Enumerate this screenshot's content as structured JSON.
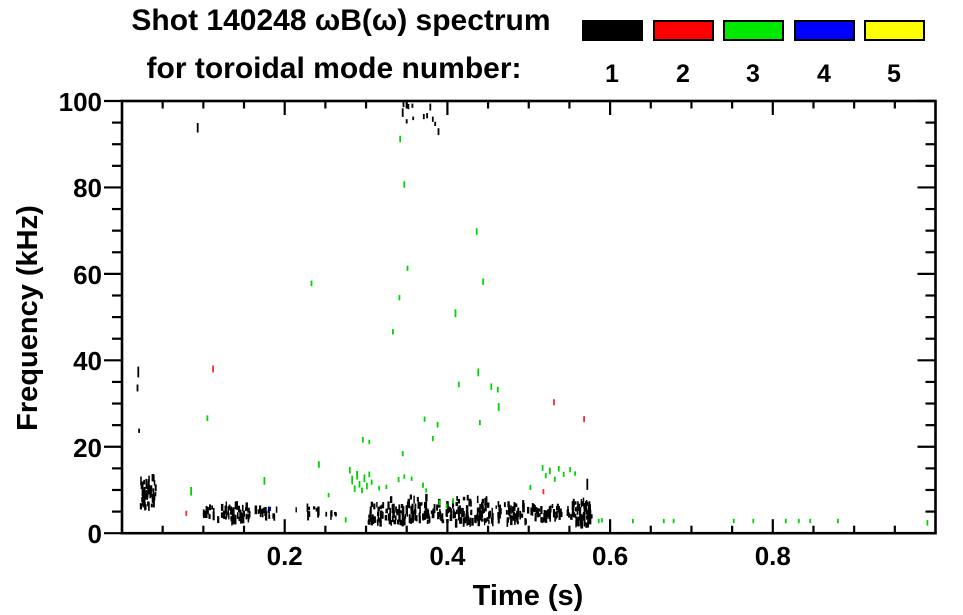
{
  "chart_data": {
    "type": "scatter",
    "title_line1": "Shot 140248 ωB(ω) spectrum",
    "title_line2": "for toroidal mode number:",
    "xlabel": "Time (s)",
    "ylabel": "Frequency (kHz)",
    "xlim": [
      0,
      1.0
    ],
    "ylim": [
      0,
      100
    ],
    "x_major_ticks": [
      0.2,
      0.4,
      0.6,
      0.8
    ],
    "x_tick_labels": [
      "0.2",
      "0.4",
      "0.6",
      "0.8"
    ],
    "x_minor_step": 0.05,
    "y_major_ticks": [
      0,
      20,
      40,
      60,
      80,
      100
    ],
    "y_tick_labels": [
      "0",
      "20",
      "40",
      "60",
      "80",
      "100"
    ],
    "y_minor_step": 5,
    "grid": "off",
    "frame_color": "#000000",
    "background_color": "#ffffff",
    "legend_position": "top-right",
    "legend_entries": [
      {
        "label": "1",
        "color": "#000000"
      },
      {
        "label": "2",
        "color": "#ff0000"
      },
      {
        "label": "3",
        "color": "#00e800"
      },
      {
        "label": "4",
        "color": "#0000ff"
      },
      {
        "label": "5",
        "color": "#ffff00"
      }
    ],
    "series": [
      {
        "name": "toroidal mode n=1",
        "color": "#000000",
        "points": [
          [
            0.02,
            37.3,
            2.5
          ],
          [
            0.019,
            33.6,
            1.6
          ],
          [
            0.021,
            23.7,
            1.0
          ],
          [
            0.093,
            93.8,
            2.2
          ],
          [
            0.345,
            97.3,
            2.0
          ],
          [
            0.346,
            99.3,
            1.4
          ],
          [
            0.35,
            95.3,
            1.0
          ],
          [
            0.352,
            98.7,
            1.2
          ],
          [
            0.357,
            98.9,
            1.0
          ],
          [
            0.358,
            96.0,
            0.8
          ],
          [
            0.371,
            96.4,
            1.2
          ],
          [
            0.375,
            96.6,
            1.2
          ],
          [
            0.379,
            98.6,
            1.6
          ],
          [
            0.382,
            95.8,
            1.2
          ],
          [
            0.385,
            94.7,
            1.0
          ],
          [
            0.389,
            92.9,
            1.6
          ],
          [
            0.572,
            11.3,
            2.6
          ]
        ],
        "bands": [
          [
            0.022,
            0.042,
            6.0,
            13.0,
            55
          ],
          [
            0.1,
            0.126,
            3.0,
            6.0,
            16
          ],
          [
            0.127,
            0.158,
            2.6,
            6.6,
            46
          ],
          [
            0.16,
            0.19,
            3.6,
            5.9,
            18
          ],
          [
            0.214,
            0.266,
            3.9,
            6.2,
            14
          ],
          [
            0.303,
            0.5,
            2.3,
            6.8,
            240
          ],
          [
            0.33,
            0.45,
            6.6,
            8.4,
            24
          ],
          [
            0.5,
            0.55,
            2.8,
            6.3,
            48
          ],
          [
            0.552,
            0.578,
            1.8,
            7.3,
            80
          ]
        ]
      },
      {
        "name": "toroidal mode n=2",
        "color": "#ff2a2a",
        "points": [
          [
            0.079,
            4.6,
            1.2
          ],
          [
            0.112,
            38.0,
            1.6
          ],
          [
            0.518,
            9.6,
            1.2
          ],
          [
            0.531,
            30.3,
            1.4
          ],
          [
            0.568,
            26.4,
            1.4
          ]
        ],
        "bands": []
      },
      {
        "name": "toroidal mode n=3",
        "color": "#00d400",
        "points": [
          [
            0.342,
            91.2,
            1.5
          ],
          [
            0.347,
            80.7,
            1.5
          ],
          [
            0.436,
            69.8,
            1.5
          ],
          [
            0.351,
            61.3,
            1.2
          ],
          [
            0.233,
            57.8,
            1.3
          ],
          [
            0.444,
            58.2,
            1.5
          ],
          [
            0.341,
            54.5,
            1.2
          ],
          [
            0.41,
            50.9,
            1.8
          ],
          [
            0.333,
            46.6,
            1.2
          ],
          [
            0.438,
            37.2,
            1.8
          ],
          [
            0.414,
            34.4,
            1.3
          ],
          [
            0.454,
            33.9,
            1.5
          ],
          [
            0.462,
            33.2,
            1.3
          ],
          [
            0.463,
            29.2,
            1.8
          ],
          [
            0.105,
            26.6,
            1.3
          ],
          [
            0.372,
            26.4,
            1.2
          ],
          [
            0.388,
            25.1,
            1.3
          ],
          [
            0.44,
            25.6,
            1.2
          ],
          [
            0.382,
            21.9,
            1.2
          ],
          [
            0.296,
            21.6,
            1.3
          ],
          [
            0.304,
            21.1,
            1.0
          ],
          [
            0.345,
            18.4,
            1.2
          ],
          [
            0.242,
            15.9,
            1.5
          ],
          [
            0.175,
            12.1,
            1.8
          ],
          [
            0.085,
            9.7,
            2.0
          ],
          [
            0.28,
            14.6,
            1.5
          ],
          [
            0.283,
            12.3,
            2.0
          ],
          [
            0.286,
            10.3,
            1.5
          ],
          [
            0.289,
            13.4,
            2.0
          ],
          [
            0.292,
            11.3,
            1.5
          ],
          [
            0.295,
            9.9,
            1.3
          ],
          [
            0.298,
            12.7,
            1.8
          ],
          [
            0.301,
            10.9,
            1.5
          ],
          [
            0.304,
            13.6,
            1.3
          ],
          [
            0.307,
            11.8,
            1.2
          ],
          [
            0.254,
            8.8,
            1.0
          ],
          [
            0.316,
            10.4,
            1.0
          ],
          [
            0.325,
            10.7,
            1.0
          ],
          [
            0.34,
            12.4,
            1.2
          ],
          [
            0.347,
            13.1,
            1.0
          ],
          [
            0.356,
            12.6,
            1.0
          ],
          [
            0.37,
            11.1,
            1.2
          ],
          [
            0.374,
            9.9,
            1.0
          ],
          [
            0.502,
            10.6,
            1.2
          ],
          [
            0.517,
            15.1,
            1.3
          ],
          [
            0.521,
            13.3,
            1.2
          ],
          [
            0.526,
            14.4,
            1.5
          ],
          [
            0.532,
            12.5,
            1.2
          ],
          [
            0.537,
            14.9,
            1.3
          ],
          [
            0.543,
            13.6,
            1.2
          ],
          [
            0.551,
            14.7,
            1.2
          ],
          [
            0.557,
            13.8,
            1.0
          ],
          [
            0.275,
            3.1,
            1.2
          ],
          [
            0.39,
            7.1,
            1.2
          ],
          [
            0.399,
            6.3,
            1.0
          ],
          [
            0.407,
            7.5,
            1.2
          ],
          [
            0.586,
            2.8,
            1.0
          ],
          [
            0.59,
            3.0,
            1.0
          ],
          [
            0.628,
            2.8,
            1.0
          ],
          [
            0.666,
            2.8,
            1.0
          ],
          [
            0.678,
            2.8,
            1.0
          ],
          [
            0.752,
            2.8,
            1.0
          ],
          [
            0.776,
            2.8,
            1.0
          ],
          [
            0.816,
            2.8,
            1.0
          ],
          [
            0.832,
            2.8,
            1.0
          ],
          [
            0.846,
            2.8,
            1.0
          ],
          [
            0.88,
            2.8,
            1.0
          ],
          [
            0.99,
            2.4,
            1.3
          ]
        ],
        "bands": []
      },
      {
        "name": "toroidal mode n=4",
        "color": "#0000ff",
        "points": [
          [
            0.182,
            5.6,
            1.0
          ]
        ],
        "bands": []
      },
      {
        "name": "toroidal mode n=5",
        "color": "#ffff00",
        "points": [],
        "bands": []
      }
    ]
  }
}
